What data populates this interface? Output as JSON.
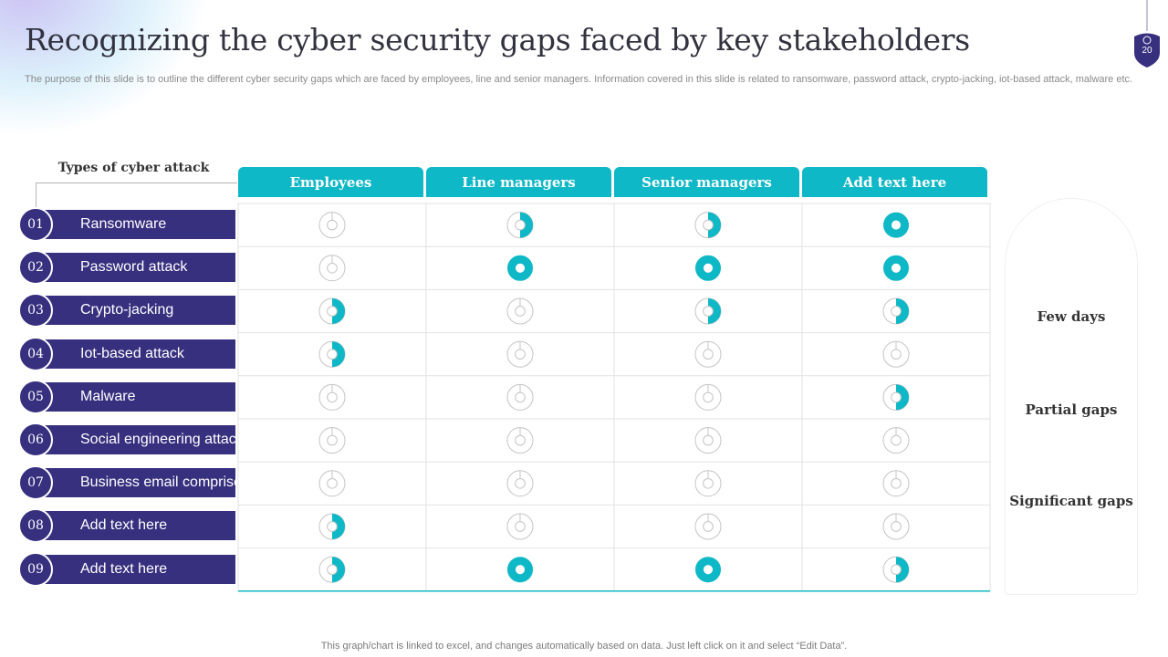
{
  "slide": {
    "title": "Recognizing the cyber security gaps faced by key stakeholders",
    "subtitle": "The purpose of this slide is to outline the different cyber security gaps which are faced by employees, line and senior managers. Information covered in this slide is related to ransomware, password attack, crypto-jacking, iot-based attack, malware etc.",
    "page_number": "20",
    "footer": "This graph/chart is linked to excel, and changes automatically based on data. Just left click on it and select “Edit Data”."
  },
  "colors": {
    "accent": "#0fb8c6",
    "primary": "#37307f",
    "ring": "#c4c4c4"
  },
  "chart_data": {
    "type": "table",
    "title": "Types of cyber attack",
    "columns": [
      "Employees",
      "Line managers",
      "Senior managers",
      "Add text here"
    ],
    "rows": [
      {
        "num": "01",
        "label": "Ransomware",
        "values": [
          0,
          0.5,
          0.5,
          1
        ]
      },
      {
        "num": "02",
        "label": "Password attack",
        "values": [
          0,
          1,
          1,
          1
        ]
      },
      {
        "num": "03",
        "label": "Crypto-jacking",
        "values": [
          0.5,
          0,
          0.5,
          0.5
        ]
      },
      {
        "num": "04",
        "label": "Iot-based attack",
        "values": [
          0.5,
          0,
          0,
          0
        ]
      },
      {
        "num": "05",
        "label": "Malware",
        "values": [
          0,
          0,
          0,
          0.5
        ]
      },
      {
        "num": "06",
        "label": "Social engineering attack",
        "values": [
          0,
          0,
          0,
          0
        ]
      },
      {
        "num": "07",
        "label": "Business email comprise",
        "values": [
          0,
          0,
          0,
          0
        ]
      },
      {
        "num": "08",
        "label": "Add text here",
        "values": [
          0.5,
          0,
          0,
          0
        ]
      },
      {
        "num": "09",
        "label": "Add text here",
        "values": [
          0.5,
          1,
          1,
          0.5
        ]
      }
    ],
    "legend": [
      {
        "label": "Few days",
        "value": 1
      },
      {
        "label": "Partial gaps",
        "value": 0.5
      },
      {
        "label": "Significant gaps",
        "value": 0
      }
    ]
  }
}
